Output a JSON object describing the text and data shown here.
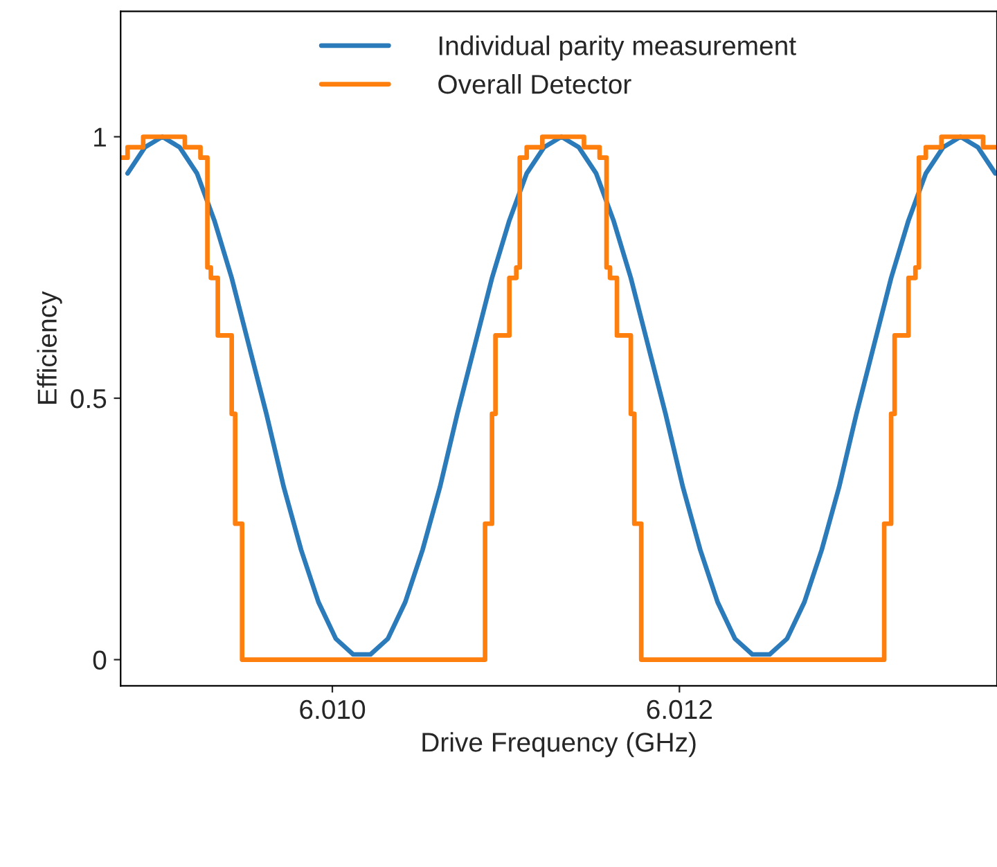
{
  "chart_data": {
    "type": "line",
    "xlabel": "Drive Frequency (GHz)",
    "ylabel": "Efficiency",
    "xlim": [
      6.00878,
      6.01383
    ],
    "xticks": [
      {
        "value": 6.01,
        "label": "6.010"
      },
      {
        "value": 6.012,
        "label": "6.012"
      }
    ],
    "ylim": [
      -0.05,
      1.24
    ],
    "yticks": [
      0,
      0.5,
      1
    ],
    "grid": false,
    "legend": "top",
    "marker": "none",
    "line_style": "solid",
    "series": [
      {
        "name": "Individual parity measurement",
        "color": "#2b7bba",
        "x": [
          6.00882,
          6.00892,
          6.00902,
          6.00912,
          6.00922,
          6.00932,
          6.00942,
          6.00952,
          6.00962,
          6.00972,
          6.00982,
          6.00992,
          6.01002,
          6.01012,
          6.01022,
          6.01032,
          6.01042,
          6.01052,
          6.01062,
          6.01072,
          6.01082,
          6.01092,
          6.01102,
          6.01112,
          6.01122,
          6.01132,
          6.01142,
          6.01152,
          6.01162,
          6.01172,
          6.01182,
          6.01192,
          6.01202,
          6.01212,
          6.01222,
          6.01232,
          6.01242,
          6.01252,
          6.01262,
          6.01272,
          6.01282,
          6.01292,
          6.01302,
          6.01312,
          6.01322,
          6.01332,
          6.01342,
          6.01352,
          6.01362,
          6.01372,
          6.01382
        ],
        "values": [
          0.93,
          0.98,
          1,
          0.98,
          0.93,
          0.84,
          0.73,
          0.6,
          0.47,
          0.33,
          0.21,
          0.11,
          0.04,
          0.01,
          0.01,
          0.04,
          0.11,
          0.21,
          0.33,
          0.47,
          0.6,
          0.73,
          0.84,
          0.93,
          0.98,
          1,
          0.98,
          0.93,
          0.84,
          0.73,
          0.6,
          0.47,
          0.33,
          0.21,
          0.11,
          0.04,
          0.01,
          0.01,
          0.04,
          0.11,
          0.21,
          0.33,
          0.47,
          0.6,
          0.73,
          0.84,
          0.93,
          0.98,
          1,
          0.98,
          0.93
        ]
      },
      {
        "name": "Overall Detector",
        "type": "step",
        "color": "#ff7f0e",
        "x": [
          6.00878,
          6.00882,
          6.00891,
          6.00915,
          6.00924,
          6.00928,
          6.0093,
          6.00934,
          6.00942,
          6.00944,
          6.00948,
          6.01088,
          6.01092,
          6.01094,
          6.01102,
          6.01106,
          6.01108,
          6.01112,
          6.01121,
          6.01145,
          6.01154,
          6.01158,
          6.0116,
          6.01164,
          6.01172,
          6.01174,
          6.01178,
          6.01318,
          6.01322,
          6.01324,
          6.01332,
          6.01336,
          6.01338,
          6.01342,
          6.01351,
          6.01375,
          6.01383
        ],
        "values": [
          0.96,
          0.98,
          1,
          0.98,
          0.96,
          0.75,
          0.73,
          0.62,
          0.47,
          0.26,
          0,
          0.26,
          0.47,
          0.62,
          0.73,
          0.75,
          0.96,
          0.98,
          1,
          0.98,
          0.96,
          0.75,
          0.73,
          0.62,
          0.47,
          0.26,
          0,
          0.26,
          0.47,
          0.62,
          0.73,
          0.75,
          0.96,
          0.98,
          1,
          0.98,
          0.98
        ]
      }
    ]
  }
}
